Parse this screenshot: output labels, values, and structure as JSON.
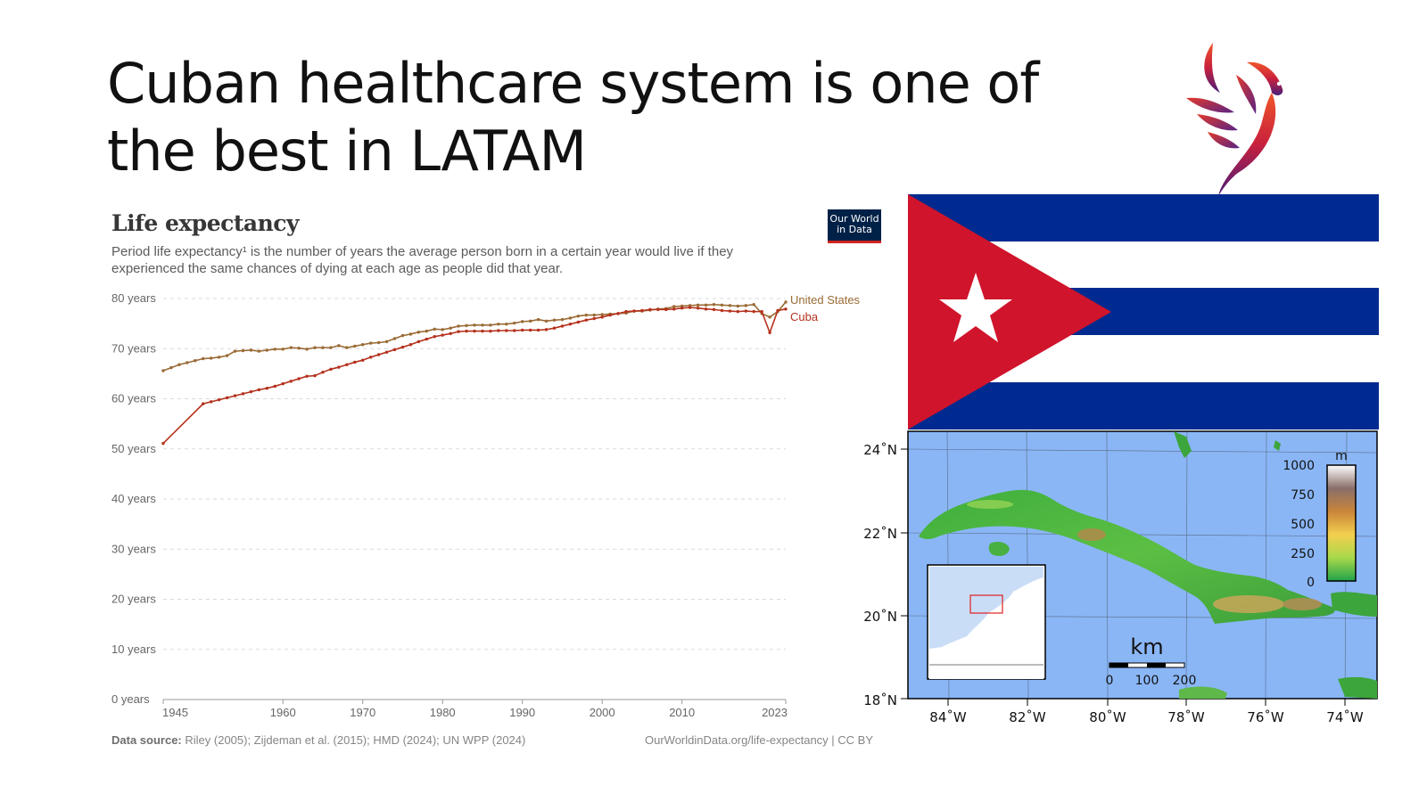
{
  "slide": {
    "title": "Cuban healthcare system is one of the best in LATAM"
  },
  "owid": {
    "logo_line1": "Our World",
    "logo_line2": "in Data",
    "source_label": "Data source:",
    "source_text": "Riley (2005); Zijdeman et al. (2015); HMD (2024); UN WPP (2024)",
    "url_text": "OurWorldinData.org/life-expectancy | CC BY"
  },
  "chart_data": {
    "type": "line",
    "title": "Life expectancy",
    "subtitle": "Period life expectancy¹ is the number of years the average person born in a certain year would live if they experienced the same chances of dying at each age as people did that year.",
    "xlabel": "",
    "ylabel": "",
    "xlim": [
      1945,
      2023
    ],
    "ylim": [
      0,
      80
    ],
    "x_ticks": [
      1945,
      1960,
      1970,
      1980,
      1990,
      2000,
      2010,
      2023
    ],
    "y_ticks": [
      {
        "value": 0,
        "label": "0 years"
      },
      {
        "value": 10,
        "label": "10 years"
      },
      {
        "value": 20,
        "label": "20 years"
      },
      {
        "value": 30,
        "label": "30 years"
      },
      {
        "value": 40,
        "label": "40 years"
      },
      {
        "value": 50,
        "label": "50 years"
      },
      {
        "value": 60,
        "label": "60 years"
      },
      {
        "value": 70,
        "label": "70 years"
      },
      {
        "value": 80,
        "label": "80 years"
      }
    ],
    "grid": true,
    "legend": "end-labels",
    "series": [
      {
        "name": "United States",
        "color": "#9a6b35",
        "x": [
          1945,
          1946,
          1947,
          1948,
          1949,
          1950,
          1951,
          1952,
          1953,
          1954,
          1955,
          1956,
          1957,
          1958,
          1959,
          1960,
          1961,
          1962,
          1963,
          1964,
          1965,
          1966,
          1967,
          1968,
          1969,
          1970,
          1971,
          1972,
          1973,
          1974,
          1975,
          1976,
          1977,
          1978,
          1979,
          1980,
          1981,
          1982,
          1983,
          1984,
          1985,
          1986,
          1987,
          1988,
          1989,
          1990,
          1991,
          1992,
          1993,
          1994,
          1995,
          1996,
          1997,
          1998,
          1999,
          2000,
          2001,
          2002,
          2003,
          2004,
          2005,
          2006,
          2007,
          2008,
          2009,
          2010,
          2011,
          2012,
          2013,
          2014,
          2015,
          2016,
          2017,
          2018,
          2019,
          2020,
          2021,
          2022,
          2023
        ],
        "values": [
          65.6,
          66.2,
          66.8,
          67.2,
          67.6,
          68.0,
          68.1,
          68.3,
          68.6,
          69.5,
          69.6,
          69.7,
          69.5,
          69.7,
          69.9,
          69.9,
          70.2,
          70.1,
          69.9,
          70.2,
          70.2,
          70.2,
          70.6,
          70.2,
          70.5,
          70.8,
          71.1,
          71.2,
          71.4,
          72.0,
          72.6,
          72.9,
          73.3,
          73.5,
          73.9,
          73.8,
          74.1,
          74.5,
          74.6,
          74.7,
          74.7,
          74.7,
          74.9,
          74.9,
          75.1,
          75.4,
          75.5,
          75.8,
          75.5,
          75.7,
          75.8,
          76.1,
          76.5,
          76.7,
          76.7,
          76.8,
          76.9,
          77.0,
          77.1,
          77.5,
          77.5,
          77.7,
          77.9,
          78.0,
          78.4,
          78.5,
          78.6,
          78.7,
          78.7,
          78.8,
          78.7,
          78.6,
          78.5,
          78.6,
          78.8,
          77.0,
          76.3,
          77.4,
          79.3
        ]
      },
      {
        "name": "Cuba",
        "color": "#b5311d",
        "x": [
          1945,
          1950,
          1951,
          1952,
          1953,
          1954,
          1955,
          1956,
          1957,
          1958,
          1959,
          1960,
          1961,
          1962,
          1963,
          1964,
          1965,
          1966,
          1967,
          1968,
          1969,
          1970,
          1971,
          1972,
          1973,
          1974,
          1975,
          1976,
          1977,
          1978,
          1979,
          1980,
          1981,
          1982,
          1983,
          1984,
          1985,
          1986,
          1987,
          1988,
          1989,
          1990,
          1991,
          1992,
          1993,
          1994,
          1995,
          1996,
          1997,
          1998,
          1999,
          2000,
          2001,
          2002,
          2003,
          2004,
          2005,
          2006,
          2007,
          2008,
          2009,
          2010,
          2011,
          2012,
          2013,
          2014,
          2015,
          2016,
          2017,
          2018,
          2019,
          2020,
          2021,
          2022,
          2023
        ],
        "values": [
          51.1,
          59.0,
          59.4,
          59.8,
          60.2,
          60.6,
          61.0,
          61.4,
          61.8,
          62.1,
          62.5,
          63.0,
          63.5,
          64.0,
          64.5,
          64.6,
          65.3,
          65.9,
          66.3,
          66.8,
          67.3,
          67.7,
          68.3,
          68.8,
          69.3,
          69.8,
          70.3,
          70.8,
          71.4,
          71.9,
          72.4,
          72.7,
          73.0,
          73.4,
          73.5,
          73.5,
          73.5,
          73.5,
          73.6,
          73.6,
          73.6,
          73.7,
          73.7,
          73.7,
          73.8,
          74.1,
          74.5,
          74.9,
          75.3,
          75.7,
          76.0,
          76.3,
          76.7,
          77.0,
          77.4,
          77.5,
          77.6,
          77.8,
          77.8,
          77.8,
          77.9,
          78.1,
          78.2,
          78.1,
          77.9,
          77.8,
          77.6,
          77.5,
          77.4,
          77.5,
          77.4,
          77.4,
          73.2,
          77.6,
          77.9
        ]
      }
    ]
  },
  "map": {
    "lat_labels": [
      "24˚N",
      "22˚N",
      "20˚N",
      "18˚N"
    ],
    "lon_labels": [
      "84˚W",
      "82˚W",
      "80˚W",
      "78˚W",
      "76˚W",
      "74˚W"
    ],
    "scale_unit": "km",
    "scale_labels": [
      "0",
      "100",
      "200"
    ],
    "legend_unit": "m",
    "legend_labels": [
      "1000",
      "750",
      "500",
      "250",
      "0"
    ]
  },
  "colors": {
    "flag_blue": "#002a8f",
    "flag_red": "#cf142b",
    "sea": "#8ab6f6",
    "owid_navy": "#002147"
  }
}
